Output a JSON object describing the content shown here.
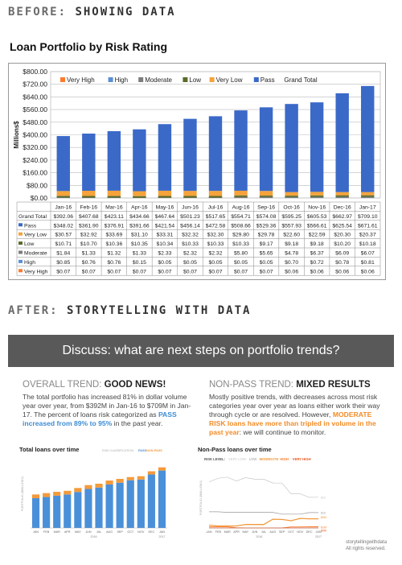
{
  "before_header": {
    "label": "BEFORE:",
    "highlight": "SHOWING DATA"
  },
  "after_header": {
    "label": "AFTER:",
    "highlight": "STORYTELLING WITH DATA"
  },
  "banner": "Discuss: what are next steps on portfolio trends?",
  "left_section": {
    "heading_label": "OVERALL TREND:",
    "heading_value": "GOOD NEWS!",
    "text_plain": "The total portfolio has increased 81% in dollar volume year over year, from $392M in Jan-16 to $709M in Jan-17. The percent of loans risk categorized as ",
    "text_highlight": "PASS increased from 89% to 95%",
    "text_end": " in the past year."
  },
  "right_section": {
    "heading_label": "NON-PASS TREND:",
    "heading_value": "MIXED RESULTS",
    "text_plain": "Mostly positive trends, with decreases across most risk categories year over year as loans either work their way through cycle or are resolved. However, ",
    "text_highlight": "MODERATE RISK loans have more than tripled in volume in the past year",
    "text_end": ": we will continue to monitor."
  },
  "credit": {
    "line1": "storytellingwithdata",
    "line2": "All rights reserved."
  },
  "colors": {
    "very_high": "#ff7a2d",
    "high": "#5b8fd6",
    "moderate": "#7d7d7d",
    "low": "#5a6b2a",
    "very_low": "#f5a33a",
    "pass": "#3b69c8",
    "sw_blue": "#4a90d9",
    "sw_orange": "#f39a3b"
  },
  "chart_data": [
    {
      "type": "bar",
      "title": "Loan Portfolio by Risk Rating",
      "ylabel": "Millions$",
      "ylim": [
        0,
        800
      ],
      "yticks": [
        "$0.00",
        "$80.00",
        "$160.00",
        "$240.00",
        "$320.00",
        "$400.00",
        "$480.00",
        "$560.00",
        "$640.00",
        "$720.00",
        "$800.00"
      ],
      "categories": [
        "Jan-16",
        "Feb-16",
        "Mar-16",
        "Apr-16",
        "May-16",
        "Jun-16",
        "Jul-16",
        "Aug-16",
        "Sep-16",
        "Oct-16",
        "Nov-16",
        "Dec-16",
        "Jan-17"
      ],
      "legend": [
        "Very High",
        "High",
        "Moderate",
        "Low",
        "Very Low",
        "Pass",
        "Grand Total"
      ],
      "grand_total_label": "Grand Total",
      "grand_total": [
        "$392.06",
        "$407.68",
        "$423.11",
        "$434.66",
        "$467.64",
        "$501.23",
        "$517.65",
        "$554.71",
        "$574.08",
        "$595.25",
        "$605.53",
        "$662.97",
        "$709.10"
      ],
      "series": [
        {
          "name": "Pass",
          "values": [
            348.02,
            361.9,
            376.91,
            391.66,
            421.54,
            456.14,
            472.58,
            508.66,
            529.36,
            557.93,
            566.61,
            625.54,
            671.61
          ],
          "labels": [
            "$348.02",
            "$361.90",
            "$376.91",
            "$391.66",
            "$421.54",
            "$456.14",
            "$472.58",
            "$508.66",
            "$529.36",
            "$557.93",
            "$566.61",
            "$625.54",
            "$671.61"
          ]
        },
        {
          "name": "Very Low",
          "values": [
            30.57,
            32.92,
            33.69,
            31.1,
            33.31,
            32.32,
            32.3,
            29.8,
            29.78,
            22.6,
            22.59,
            20.3,
            20.37
          ],
          "labels": [
            "$30.57",
            "$32.92",
            "$33.69",
            "$31.10",
            "$33.31",
            "$32.32",
            "$32.30",
            "$29.80",
            "$29.78",
            "$22.60",
            "$22.59",
            "$20.30",
            "$20.37"
          ]
        },
        {
          "name": "Low",
          "values": [
            10.71,
            10.7,
            10.36,
            10.35,
            10.34,
            10.33,
            10.33,
            10.33,
            9.17,
            9.18,
            9.18,
            10.2,
            10.18
          ],
          "labels": [
            "$10.71",
            "$10.70",
            "$10.36",
            "$10.35",
            "$10.34",
            "$10.33",
            "$10.33",
            "$10.33",
            "$9.17",
            "$9.18",
            "$9.18",
            "$10.20",
            "$10.18"
          ]
        },
        {
          "name": "Moderate",
          "values": [
            1.84,
            1.33,
            1.32,
            1.33,
            2.33,
            2.32,
            2.32,
            5.8,
            5.65,
            4.78,
            6.37,
            6.09,
            6.07
          ],
          "labels": [
            "$1.84",
            "$1.33",
            "$1.32",
            "$1.33",
            "$2.33",
            "$2.32",
            "$2.32",
            "$5.80",
            "$5.65",
            "$4.78",
            "$6.37",
            "$6.09",
            "$6.07"
          ]
        },
        {
          "name": "High",
          "values": [
            0.85,
            0.76,
            0.76,
            0.15,
            0.05,
            0.05,
            0.05,
            0.05,
            0.05,
            0.7,
            0.72,
            0.78,
            0.81
          ],
          "labels": [
            "$0.85",
            "$0.76",
            "$0.76",
            "$0.15",
            "$0.05",
            "$0.05",
            "$0.05",
            "$0.05",
            "$0.05",
            "$0.70",
            "$0.72",
            "$0.78",
            "$0.81"
          ]
        },
        {
          "name": "Very High",
          "values": [
            0.07,
            0.07,
            0.07,
            0.07,
            0.07,
            0.07,
            0.07,
            0.07,
            0.07,
            0.06,
            0.06,
            0.06,
            0.06
          ],
          "labels": [
            "$0.07",
            "$0.07",
            "$0.07",
            "$0.07",
            "$0.07",
            "$0.07",
            "$0.07",
            "$0.07",
            "$0.07",
            "$0.06",
            "$0.06",
            "$0.06",
            "$0.06"
          ]
        }
      ]
    },
    {
      "type": "bar",
      "title": "Total loans over time",
      "legend_label": "RISK CLASSIFICATION:",
      "legend": [
        "PASS",
        "NON-PASS"
      ],
      "ylabel": "PORTFOLIO ($MILLIONS)",
      "ylim": [
        0,
        800
      ],
      "categories": [
        "JAN",
        "FEB",
        "MAR",
        "APR",
        "MAY",
        "JUN",
        "JUL",
        "AUG",
        "SEP",
        "OCT",
        "NOV",
        "DEC",
        "JAN"
      ],
      "year_labels": [
        "2016",
        "2017"
      ],
      "series": [
        {
          "name": "PASS",
          "values": [
            348.02,
            361.9,
            376.91,
            391.66,
            421.54,
            456.14,
            472.58,
            508.66,
            529.36,
            557.93,
            566.61,
            625.54,
            671.61
          ]
        },
        {
          "name": "NON-PASS",
          "values": [
            44.04,
            45.78,
            46.2,
            43.0,
            46.1,
            45.09,
            45.07,
            46.05,
            44.72,
            37.32,
            38.92,
            37.43,
            37.49
          ]
        }
      ]
    },
    {
      "type": "line",
      "title": "Non-Pass loans over time",
      "legend_label": "RISK LEVEL:",
      "legend": [
        "VERY LOW",
        "LOW",
        "MODERATE",
        "HIGH",
        "VERY HIGH"
      ],
      "ylabel": "PORTFOLIO ($MILLIONS)",
      "ylim": [
        0,
        40
      ],
      "categories": [
        "JAN",
        "FEB",
        "MAR",
        "APR",
        "MAY",
        "JUN",
        "JUL",
        "AUG",
        "SEP",
        "OCT",
        "NOV",
        "DEC",
        "JAN"
      ],
      "year_labels": [
        "2016",
        "2017"
      ],
      "end_labels": [
        "$20",
        "$10",
        "$6M",
        "$1M",
        "$0M"
      ],
      "series": [
        {
          "name": "VERY LOW",
          "values": [
            30.57,
            32.92,
            33.69,
            31.1,
            33.31,
            32.32,
            32.3,
            29.8,
            29.78,
            22.6,
            22.59,
            20.3,
            20.37
          ]
        },
        {
          "name": "LOW",
          "values": [
            10.71,
            10.7,
            10.36,
            10.35,
            10.34,
            10.33,
            10.33,
            10.33,
            9.17,
            9.18,
            9.18,
            10.2,
            10.18
          ]
        },
        {
          "name": "MODERATE",
          "values": [
            1.84,
            1.33,
            1.32,
            1.33,
            2.33,
            2.32,
            2.32,
            5.8,
            5.65,
            4.78,
            6.37,
            6.09,
            6.07
          ]
        },
        {
          "name": "HIGH",
          "values": [
            0.85,
            0.76,
            0.76,
            0.15,
            0.05,
            0.05,
            0.05,
            0.05,
            0.05,
            0.7,
            0.72,
            0.78,
            0.81
          ]
        },
        {
          "name": "VERY HIGH",
          "values": [
            0.07,
            0.07,
            0.07,
            0.07,
            0.07,
            0.07,
            0.07,
            0.07,
            0.07,
            0.06,
            0.06,
            0.06,
            0.06
          ]
        }
      ]
    }
  ]
}
